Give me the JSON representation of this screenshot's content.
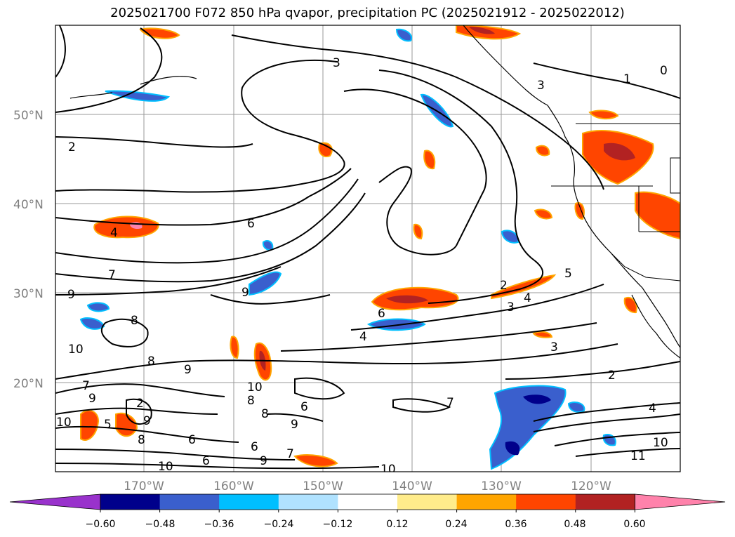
{
  "title": "2025021700 F072 850 hPa qvapor, precipitation PC (2025021912 - 2025022012)",
  "map": {
    "lat_labels": [
      "50°N",
      "40°N",
      "30°N",
      "20°N"
    ],
    "lon_labels": [
      "170°W",
      "160°W",
      "150°W",
      "140°W",
      "130°W",
      "120°W"
    ],
    "contour_labels": [
      "2",
      "3",
      "1",
      "0",
      "3",
      "2",
      "6",
      "7",
      "9",
      "8",
      "10",
      "9",
      "9",
      "8",
      "8",
      "7",
      "6",
      "5",
      "4",
      "3",
      "2",
      "4",
      "3",
      "2",
      "4",
      "11",
      "10",
      "10",
      "9",
      "9",
      "8",
      "6",
      "5",
      "7",
      "10",
      "6",
      "9",
      "6",
      "8",
      "9",
      "2",
      "7"
    ]
  },
  "colorbar": {
    "colors": [
      "#9932cc",
      "#00008b",
      "#3a5fcd",
      "#00bfff",
      "#b0e2ff",
      "#ffffff",
      "#ffec8b",
      "#ffa500",
      "#ff4500",
      "#b22222",
      "#ff82ab"
    ],
    "tick_labels": [
      "−0.60",
      "−0.48",
      "−0.36",
      "−0.24",
      "−0.12",
      "0.12",
      "0.24",
      "0.36",
      "0.48",
      "0.60"
    ]
  }
}
